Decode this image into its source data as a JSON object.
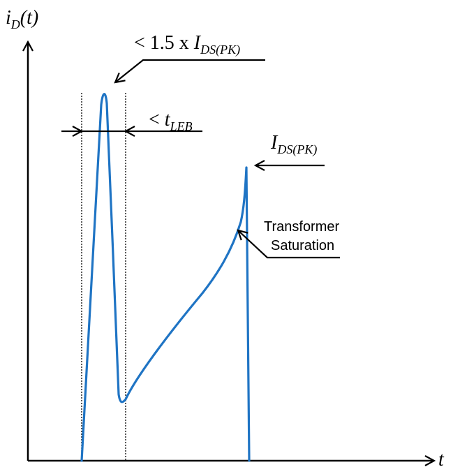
{
  "axes": {
    "y_label": {
      "main": "i",
      "sub": "D",
      "tail": "(t)"
    },
    "x_label": "t"
  },
  "annotations": {
    "spike_label": {
      "prefix": "< 1.5 x ",
      "main": "I",
      "sub": "DS(PK)"
    },
    "leb_label": {
      "prefix": "< ",
      "main": "t",
      "sub": "LEB"
    },
    "peak_label": {
      "main": "I",
      "sub": "DS(PK)"
    },
    "saturation_label": {
      "line1": "Transformer",
      "line2": "Saturation"
    }
  },
  "colors": {
    "waveform": "#1f74c4",
    "ink": "#000000",
    "background": "#ffffff"
  }
}
